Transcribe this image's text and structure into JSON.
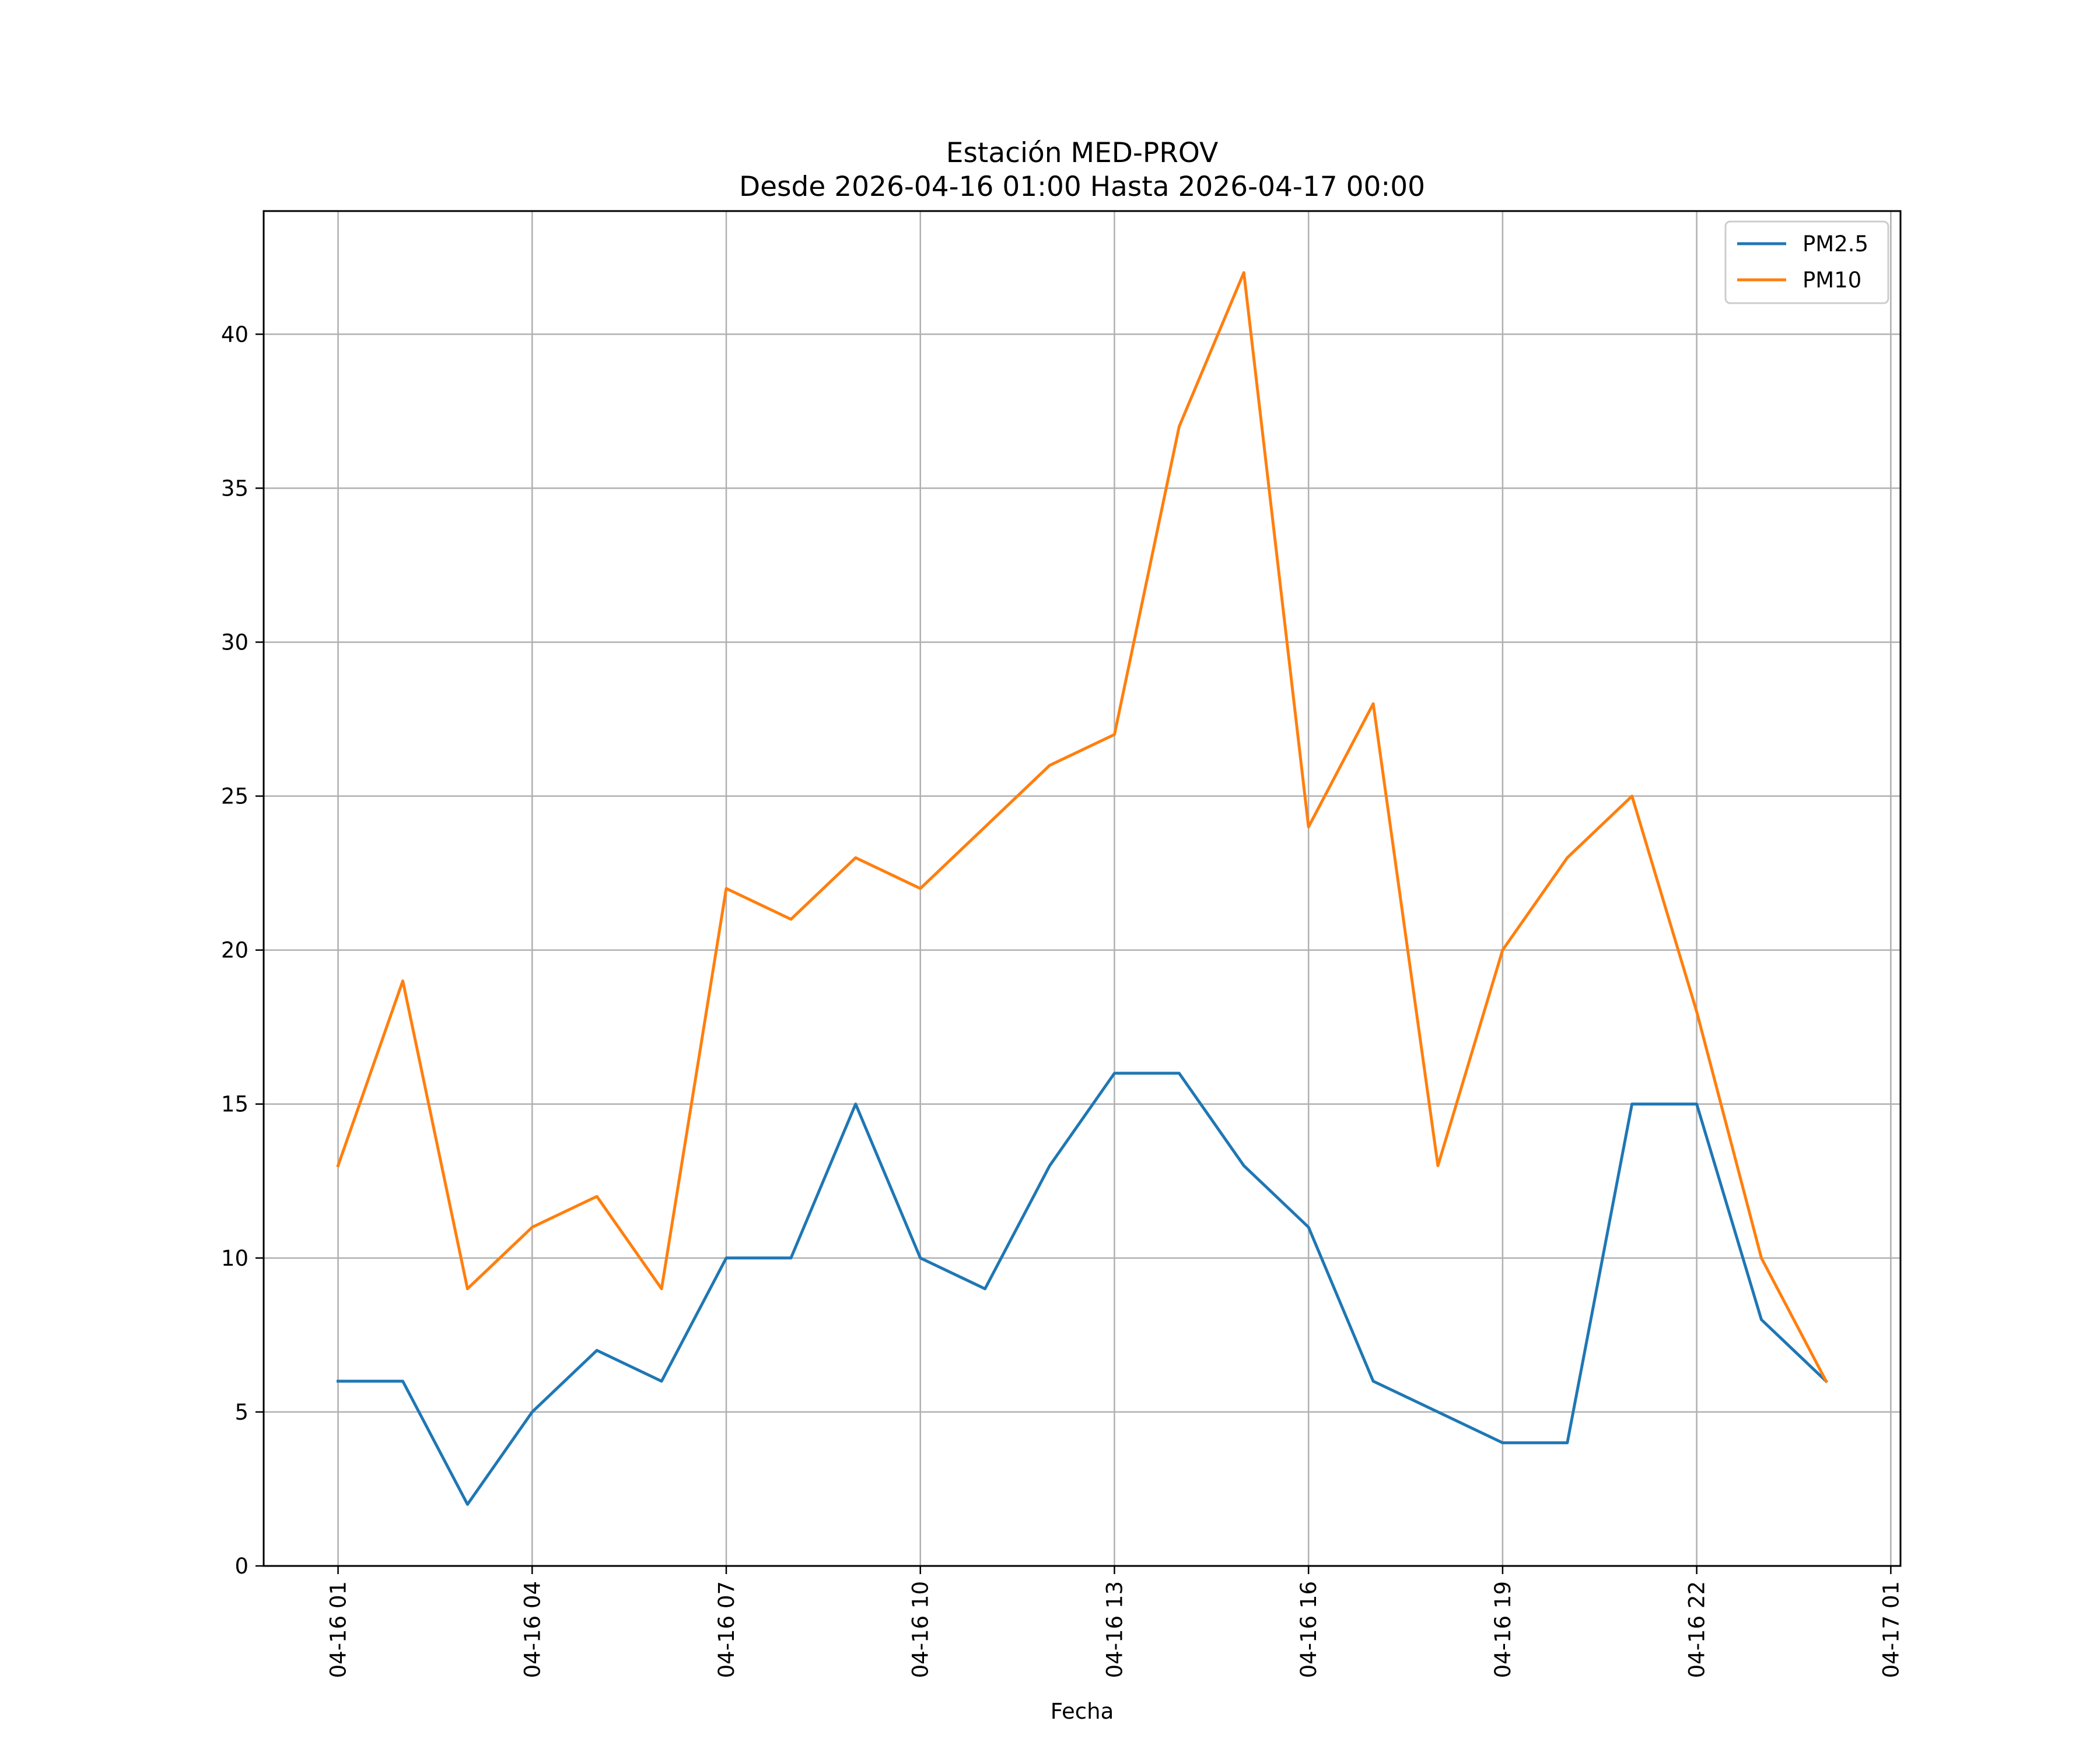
{
  "chart_data": {
    "type": "line",
    "title": "Estación MED-PROV",
    "subtitle": "Desde 2026-04-16 01:00 Hasta 2026-04-17 00:00",
    "xlabel": "Fecha",
    "ylabel": "",
    "x_hours": [
      1,
      2,
      3,
      4,
      5,
      6,
      7,
      8,
      9,
      10,
      11,
      12,
      13,
      14,
      15,
      16,
      17,
      18,
      19,
      20,
      21,
      22,
      23,
      24
    ],
    "x_tick_hours": [
      1,
      4,
      7,
      10,
      13,
      16,
      19,
      22,
      25
    ],
    "x_tick_labels": [
      "04-16 01",
      "04-16 04",
      "04-16 07",
      "04-16 10",
      "04-16 13",
      "04-16 16",
      "04-16 19",
      "04-16 22",
      "04-17 01"
    ],
    "xlim": [
      -0.15,
      25.15
    ],
    "ylim": [
      0,
      44
    ],
    "y_ticks": [
      0,
      5,
      10,
      15,
      20,
      25,
      30,
      35,
      40
    ],
    "y_tick_labels": [
      "0",
      "5",
      "10",
      "15",
      "20",
      "25",
      "30",
      "35",
      "40"
    ],
    "grid": true,
    "legend_position": "top-right",
    "series": [
      {
        "name": "PM2.5",
        "color": "#1f77b4",
        "values": [
          6,
          6,
          2,
          5,
          7,
          6,
          10,
          10,
          15,
          10,
          9,
          13,
          16,
          16,
          13,
          11,
          6,
          5,
          4,
          4,
          15,
          15,
          8,
          6
        ]
      },
      {
        "name": "PM10",
        "color": "#ff7f0e",
        "values": [
          13,
          19,
          9,
          11,
          12,
          9,
          22,
          21,
          23,
          22,
          24,
          26,
          27,
          37,
          42,
          24,
          28,
          13,
          20,
          23,
          25,
          18,
          10,
          6
        ]
      }
    ]
  }
}
